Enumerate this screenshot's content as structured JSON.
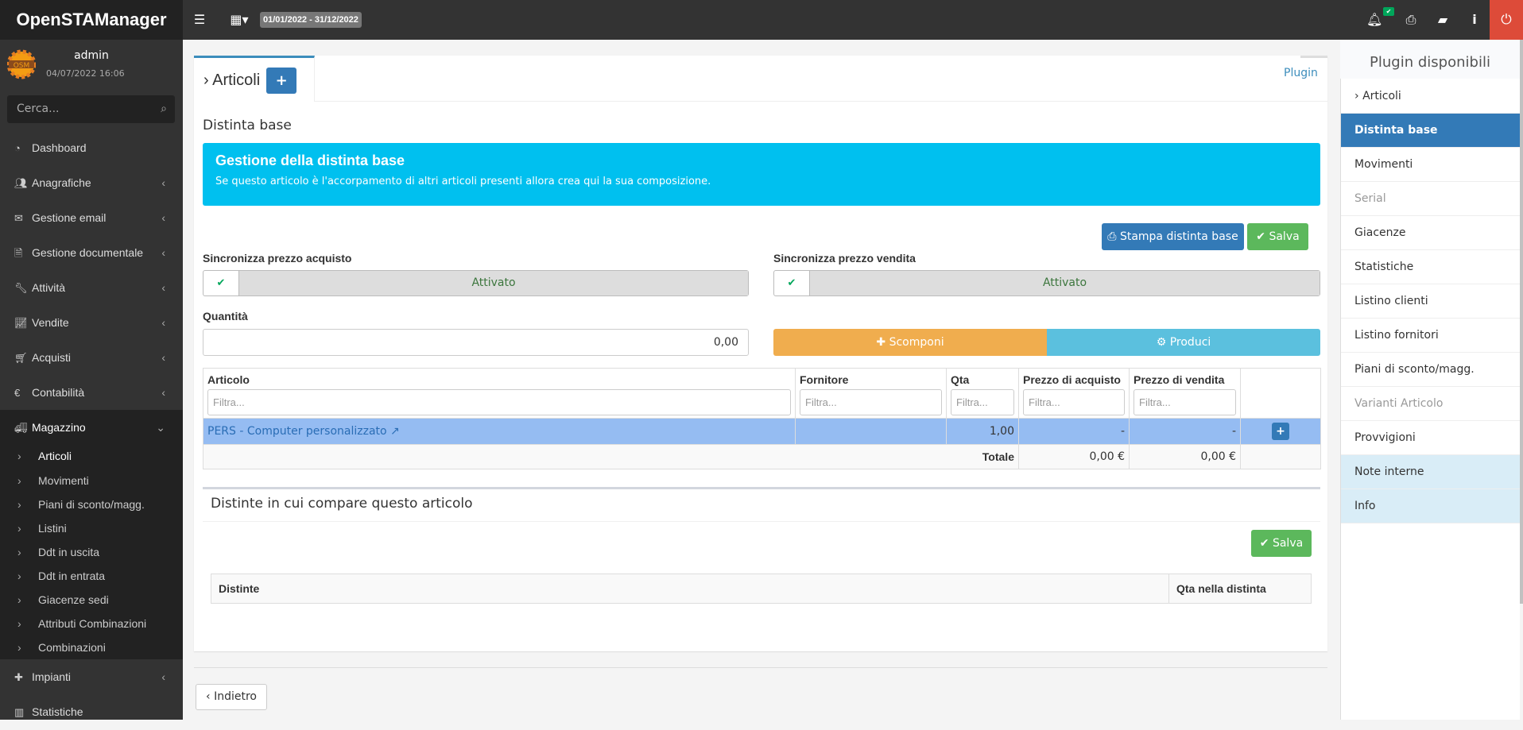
{
  "app": {
    "brand": "OpenSTAManager",
    "date_range": "01/01/2022 - 31/12/2022"
  },
  "user": {
    "name": "admin",
    "datetime": "04/07/2022 16:06",
    "avatar_text": "OSM"
  },
  "search": {
    "placeholder": "Cerca..."
  },
  "sidebar": {
    "items": [
      {
        "label": "Dashboard",
        "icon": "dashboard-icon"
      },
      {
        "label": "Anagrafiche",
        "icon": "users-icon"
      },
      {
        "label": "Gestione email",
        "icon": "envelope-icon"
      },
      {
        "label": "Gestione documentale",
        "icon": "file-icon"
      },
      {
        "label": "Attività",
        "icon": "wrench-icon"
      },
      {
        "label": "Vendite",
        "icon": "chart-icon"
      },
      {
        "label": "Acquisti",
        "icon": "cart-icon"
      },
      {
        "label": "Contabilità",
        "icon": "euro-icon"
      },
      {
        "label": "Magazzino",
        "icon": "truck-icon"
      },
      {
        "label": "Impianti",
        "icon": "puzzle-icon"
      },
      {
        "label": "Statistiche",
        "icon": "bar-chart-icon"
      }
    ],
    "magazzino_sub": [
      "Articoli",
      "Movimenti",
      "Piani di sconto/magg.",
      "Listini",
      "Ddt in uscita",
      "Ddt in entrata",
      "Giacenze sedi",
      "Attributi Combinazioni",
      "Combinazioni"
    ]
  },
  "main": {
    "tab_title": "Articoli",
    "plugin_link": "Plugin",
    "section_title": "Distinta base",
    "callout": {
      "title": "Gestione della distinta base",
      "text": "Se questo articolo è l'accorpamento di altri articoli presenti allora crea qui la sua composizione.",
      "color": "#00c0ef"
    },
    "print_button": "Stampa distinta base",
    "save_button": "Salva",
    "sync_purchase": {
      "label": "Sincronizza prezzo acquisto",
      "value": "Attivato"
    },
    "sync_sale": {
      "label": "Sincronizza prezzo vendita",
      "value": "Attivato"
    },
    "quantity": {
      "label": "Quantità",
      "value": "0,00"
    },
    "decompose_button": "Scomponi",
    "produce_button": "Produci",
    "table": {
      "headers": [
        "Articolo",
        "Fornitore",
        "Qta",
        "Prezzo di acquisto",
        "Prezzo di vendita"
      ],
      "filter_placeholder": "Filtra...",
      "rows": [
        {
          "articolo": "PERS - Computer personalizzato",
          "fornitore": "",
          "qta": "1,00",
          "acquisto": "-",
          "vendita": "-"
        }
      ],
      "total": {
        "label": "Totale",
        "acquisto": "0,00 €",
        "vendita": "0,00 €"
      }
    },
    "box2": {
      "title": "Distinte in cui compare questo articolo",
      "save_button": "Salva",
      "headers": [
        "Distinte",
        "Qta nella distinta"
      ]
    },
    "back_button": "Indietro"
  },
  "plugins": {
    "title": "Plugin disponibili",
    "items": [
      {
        "label": "Articoli",
        "state": "back"
      },
      {
        "label": "Distinta base",
        "state": "active"
      },
      {
        "label": "Movimenti",
        "state": "normal"
      },
      {
        "label": "Serial",
        "state": "disabled"
      },
      {
        "label": "Giacenze",
        "state": "normal"
      },
      {
        "label": "Statistiche",
        "state": "normal"
      },
      {
        "label": "Listino clienti",
        "state": "normal"
      },
      {
        "label": "Listino fornitori",
        "state": "normal"
      },
      {
        "label": "Piani di sconto/magg.",
        "state": "normal"
      },
      {
        "label": "Varianti Articolo",
        "state": "disabled"
      },
      {
        "label": "Provvigioni",
        "state": "normal"
      },
      {
        "label": "Note interne",
        "state": "info"
      },
      {
        "label": "Info",
        "state": "info"
      }
    ]
  }
}
